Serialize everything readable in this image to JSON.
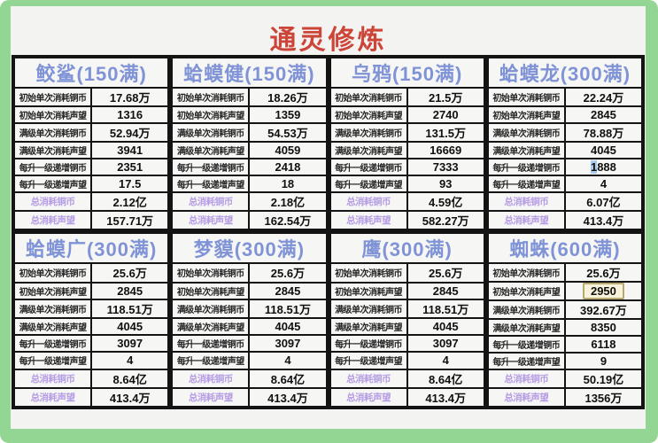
{
  "title": "通灵修炼",
  "colors": {
    "frame_green": "#93d593",
    "panel_bg": "#f3f3f1",
    "title_red": "#cd4538",
    "header_blue": "#7f93d6",
    "total_label_purple": "#b59ce4",
    "border_black": "#141414",
    "selection_blue": "#a9c9ef",
    "highlight_box_bg": "#f8f2da",
    "highlight_box_border": "#b8a872"
  },
  "chart_data": {
    "type": "table",
    "title": "通灵修炼",
    "row_labels": [
      "初始单次消耗铜币",
      "初始单次消耗声望",
      "满级单次消耗铜币",
      "满级单次消耗声望",
      "每升一级递增铜币",
      "每升一级递增声望",
      "总消耗铜币",
      "总消耗声望"
    ],
    "tables": [
      {
        "name": "鲛鲨(150满)",
        "values": [
          "17.68万",
          "1316",
          "52.94万",
          "3941",
          "2351",
          "17.5",
          "2.12亿",
          "157.71万"
        ]
      },
      {
        "name": "蛤蟆健(150满)",
        "values": [
          "18.26万",
          "1359",
          "54.53万",
          "4059",
          "2418",
          "18",
          "2.18亿",
          "162.54万"
        ]
      },
      {
        "name": "乌鸦(150满)",
        "values": [
          "21.5万",
          "2740",
          "131.5万",
          "16669",
          "7333",
          "93",
          "4.59亿",
          "582.27万"
        ]
      },
      {
        "name": "蛤蟆龙(300满)",
        "values": [
          "22.24万",
          "2845",
          "78.88万",
          "4045",
          "1888",
          "4",
          "6.07亿",
          "413.4万"
        ]
      },
      {
        "name": "蛤蟆广(300满)",
        "values": [
          "25.6万",
          "2845",
          "118.51万",
          "4045",
          "3097",
          "4",
          "8.64亿",
          "413.4万"
        ]
      },
      {
        "name": "梦貘(300满)",
        "values": [
          "25.6万",
          "2845",
          "118.51万",
          "4045",
          "3097",
          "4",
          "8.64亿",
          "413.4万"
        ]
      },
      {
        "name": "鹰(300满)",
        "values": [
          "25.6万",
          "2845",
          "118.51万",
          "4045",
          "3097",
          "4",
          "8.64亿",
          "413.4万"
        ]
      },
      {
        "name": "蜘蛛(600满)",
        "values": [
          "25.6万",
          "2950",
          "392.67万",
          "8350",
          "6118",
          "9",
          "50.19亿",
          "1356万"
        ]
      }
    ]
  }
}
